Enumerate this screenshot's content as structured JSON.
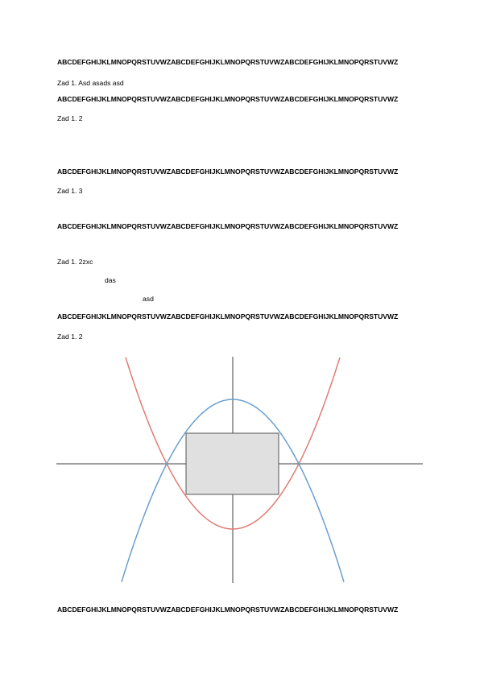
{
  "lines": [
    "ABCDEFGHIJKLMNOPQRSTUVWZABCDEFGHIJKLMNOPQRSTUVWZABCDEFGHIJKLMNOPQRSTUVWZ",
    "Zad 1. Asd asads asd",
    "ABCDEFGHIJKLMNOPQRSTUVWZABCDEFGHIJKLMNOPQRSTUVWZABCDEFGHIJKLMNOPQRSTUVWZ",
    "Zad 1. 2",
    "ABCDEFGHIJKLMNOPQRSTUVWZABCDEFGHIJKLMNOPQRSTUVWZABCDEFGHIJKLMNOPQRSTUVWZ",
    "Zad 1. 3",
    "ABCDEFGHIJKLMNOPQRSTUVWZABCDEFGHIJKLMNOPQRSTUVWZABCDEFGHIJKLMNOPQRSTUVWZ",
    "Zad 1. 2zxc",
    "das",
    "asd",
    "ABCDEFGHIJKLMNOPQRSTUVWZABCDEFGHIJKLMNOPQRSTUVWZABCDEFGHIJKLMNOPQRSTUVWZ",
    "Zad 1. 2",
    "ABCDEFGHIJKLMNOPQRSTUVWZABCDEFGHIJKLMNOPQRSTUVWZABCDEFGHIJKLMNOPQRSTUVWZ"
  ],
  "figure": {
    "colors": {
      "axes": "#404040",
      "red_curve": "#e07b74",
      "blue_curve": "#6a9fd0",
      "rect_fill": "#e0e0e0",
      "rect_stroke": "#555555"
    }
  }
}
